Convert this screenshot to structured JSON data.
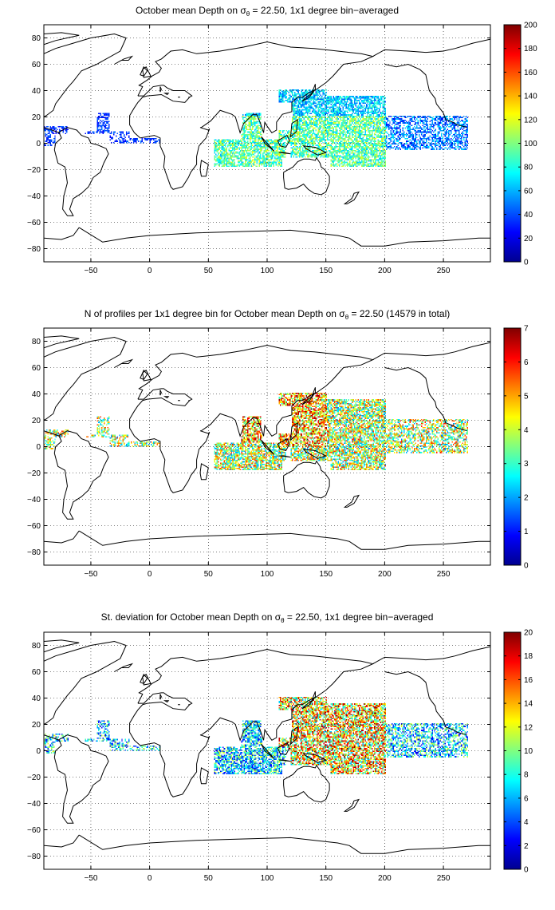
{
  "figure": {
    "panels": [
      {
        "title_parts": [
          "October mean Depth on σ",
          "θ",
          " = 22.50, 1x1 degree bin−averaged"
        ],
        "colorbar": {
          "min": 0,
          "max": 200,
          "ticks": [
            "0",
            "20",
            "40",
            "60",
            "80",
            "100",
            "120",
            "140",
            "160",
            "180",
            "200"
          ]
        },
        "field": "mean_depth"
      },
      {
        "title_parts": [
          "N of profiles per 1x1 degree bin for October mean Depth on σ",
          "θ",
          " = 22.50 (14579 in total)"
        ],
        "colorbar": {
          "min": 0,
          "max": 7,
          "ticks": [
            "0",
            "1",
            "2",
            "3",
            "4",
            "5",
            "6",
            "7"
          ]
        },
        "field": "n_profiles"
      },
      {
        "title_parts": [
          "St. deviation for October mean Depth on σ",
          "θ",
          " = 22.50, 1x1 degree bin−averaged"
        ],
        "colorbar": {
          "min": 0,
          "max": 20,
          "ticks": [
            "0",
            "2",
            "4",
            "6",
            "8",
            "10",
            "12",
            "14",
            "16",
            "18",
            "20"
          ]
        },
        "field": "std_depth"
      }
    ],
    "x_ticks": [
      "−50",
      "0",
      "50",
      "100",
      "150",
      "200",
      "250"
    ],
    "y_ticks": [
      "80",
      "60",
      "40",
      "20",
      "0",
      "−20",
      "−40",
      "−60",
      "−80"
    ],
    "x_range": [
      -90,
      290
    ],
    "y_range": [
      -90,
      90
    ],
    "colormap": "jet",
    "grid": "dotted"
  }
}
